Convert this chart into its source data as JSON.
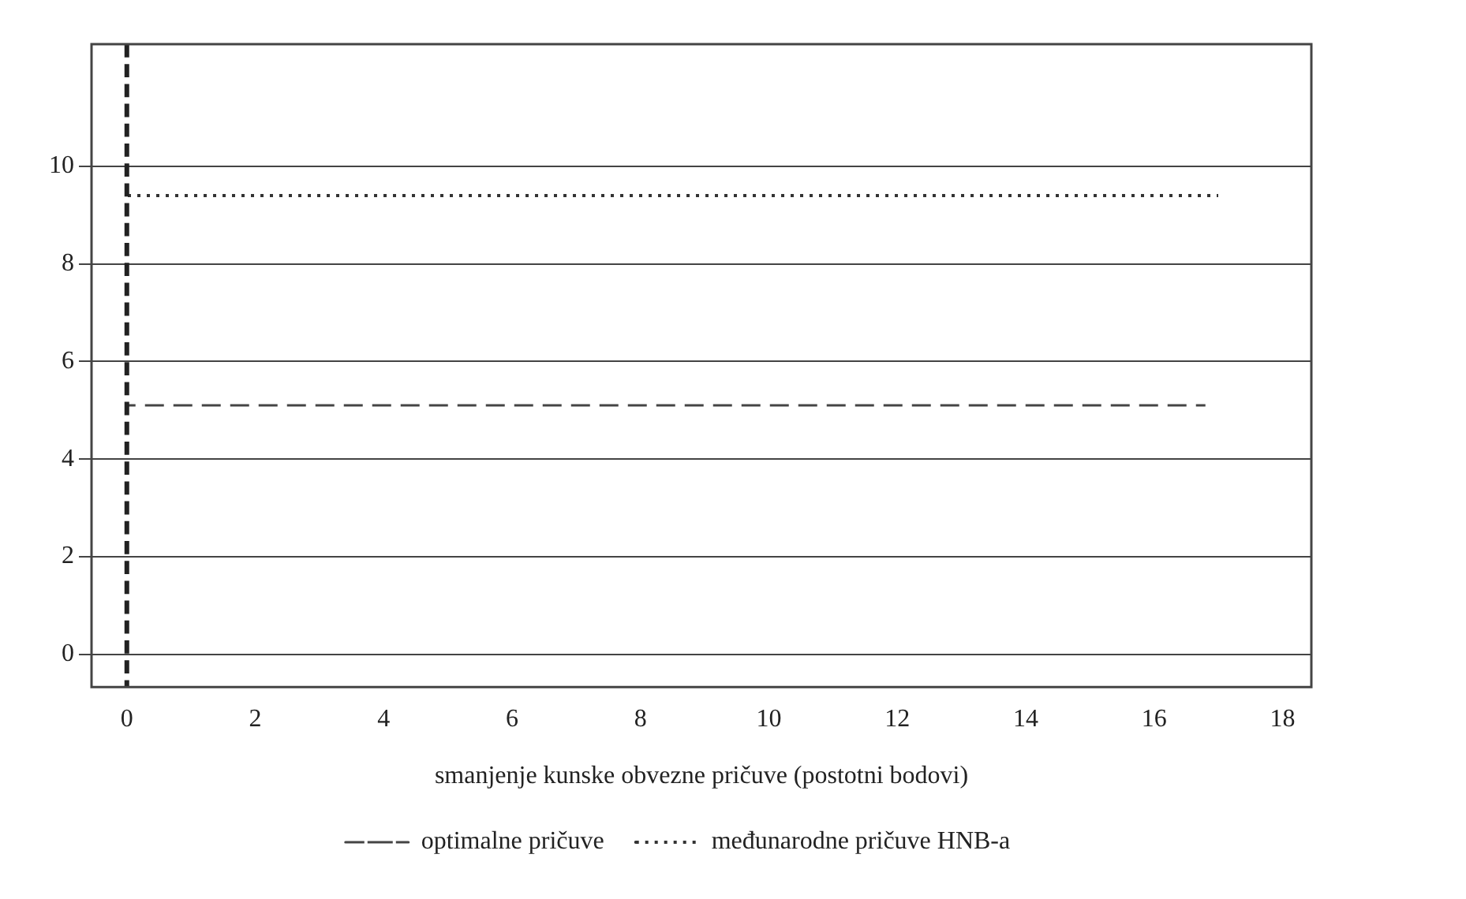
{
  "chart_data": {
    "type": "line",
    "xlabel": "smanjenje kunske obvezne pričuve (postotni bodovi)",
    "series": [
      {
        "name": "optimalne pričuve",
        "color": "#444444",
        "x": [
          0,
          16.8
        ],
        "values": [
          5.1,
          5.1
        ],
        "line_style": "dashed"
      },
      {
        "name": "međunarodne pričuve HNB-a",
        "color": "#333333",
        "x": [
          0,
          17
        ],
        "values": [
          9.4,
          9.4
        ],
        "line_style": "dotted"
      }
    ],
    "ref_lines": [
      {
        "axis": "x",
        "value": 0,
        "color": "#222222",
        "line_style": "dashed"
      }
    ],
    "xlim": [
      -0.55,
      18.45
    ],
    "xticks": [
      0,
      2,
      4,
      6,
      8,
      10,
      12,
      14,
      16,
      18
    ],
    "ylim": [
      -0.67,
      12.5
    ],
    "yticks": [
      0,
      2,
      4,
      6,
      8,
      10
    ],
    "grid": "y",
    "legend": "bottom",
    "marker": "none"
  }
}
